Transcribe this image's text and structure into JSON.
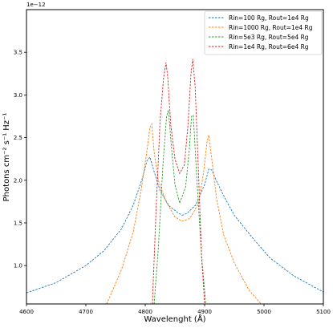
{
  "chart_data": {
    "type": "line",
    "title": "",
    "xlabel": "Wavelenght (Å)",
    "ylabel": "Photons cm⁻² s⁻¹ Hz⁻¹",
    "y_offset_text": "1e−12",
    "xlim": [
      4600,
      5100
    ],
    "ylim": [
      0.55,
      4.0
    ],
    "y_scale_factor": 1e-12,
    "x_ticks": [
      4600,
      4700,
      4800,
      4900,
      5000,
      5100
    ],
    "x_tick_labels": [
      "4600",
      "4700",
      "4800",
      "4900",
      "5000",
      "5100"
    ],
    "y_ticks": [
      1.0,
      1.5,
      2.0,
      2.5,
      3.0,
      3.5
    ],
    "y_tick_labels": [
      "1.0",
      "1.5",
      "2.0",
      "2.5",
      "3.0",
      "3.5"
    ],
    "grid": false,
    "legend_position": "top-right",
    "line_style": "dashed",
    "series": [
      {
        "name": "Rin=100 Rg, Rout=1e4 Rg",
        "color": "#1f77b4",
        "x": [
          4600,
          4650,
          4700,
          4730,
          4760,
          4780,
          4795,
          4803,
          4808,
          4815,
          4825,
          4840,
          4855,
          4862,
          4870,
          4885,
          4900,
          4907,
          4912,
          4920,
          4935,
          4950,
          4980,
          5010,
          5050,
          5100
        ],
        "y": [
          0.68,
          0.8,
          1.0,
          1.17,
          1.43,
          1.71,
          2.02,
          2.23,
          2.27,
          2.1,
          1.88,
          1.7,
          1.62,
          1.59,
          1.61,
          1.71,
          1.95,
          2.13,
          2.12,
          1.99,
          1.78,
          1.59,
          1.33,
          1.09,
          0.88,
          0.69
        ]
      },
      {
        "name": "Rin=1000 Rg, Rout=1e4 Rg",
        "color": "#ff7f0e",
        "x": [
          4735,
          4760,
          4780,
          4793,
          4802,
          4808,
          4811,
          4815,
          4822,
          4835,
          4850,
          4862,
          4875,
          4890,
          4898,
          4904,
          4907,
          4912,
          4920,
          4932,
          4950,
          4975,
          4995
        ],
        "y": [
          0.55,
          0.95,
          1.4,
          1.88,
          2.3,
          2.62,
          2.66,
          2.33,
          2.0,
          1.75,
          1.57,
          1.52,
          1.55,
          1.73,
          2.08,
          2.45,
          2.53,
          2.25,
          1.79,
          1.36,
          1.03,
          0.71,
          0.55
        ]
      },
      {
        "name": "Rin=5e3 Rg, Rout=5e4 Rg",
        "color": "#2ca02c",
        "x": [
          4815,
          4822,
          4830,
          4836,
          4839,
          4844,
          4850,
          4858,
          4868,
          4874,
          4878,
          4881,
          4887,
          4895,
          4902
        ],
        "y": [
          0.55,
          1.2,
          2.2,
          2.75,
          2.82,
          2.4,
          1.95,
          1.73,
          1.92,
          2.35,
          2.75,
          2.76,
          2.0,
          1.1,
          0.55
        ]
      },
      {
        "name": "Rin=1e4 Rg, Rout=6e4 Rg",
        "color": "#d62728",
        "x": [
          4812,
          4818,
          4825,
          4831,
          4835,
          4838,
          4843,
          4850,
          4858,
          4866,
          4872,
          4877,
          4880,
          4884,
          4889,
          4895,
          4900
        ],
        "y": [
          0.55,
          1.6,
          2.7,
          3.2,
          3.38,
          3.2,
          2.65,
          2.25,
          2.08,
          2.18,
          2.65,
          3.25,
          3.42,
          3.1,
          2.2,
          1.1,
          0.55
        ]
      }
    ]
  }
}
